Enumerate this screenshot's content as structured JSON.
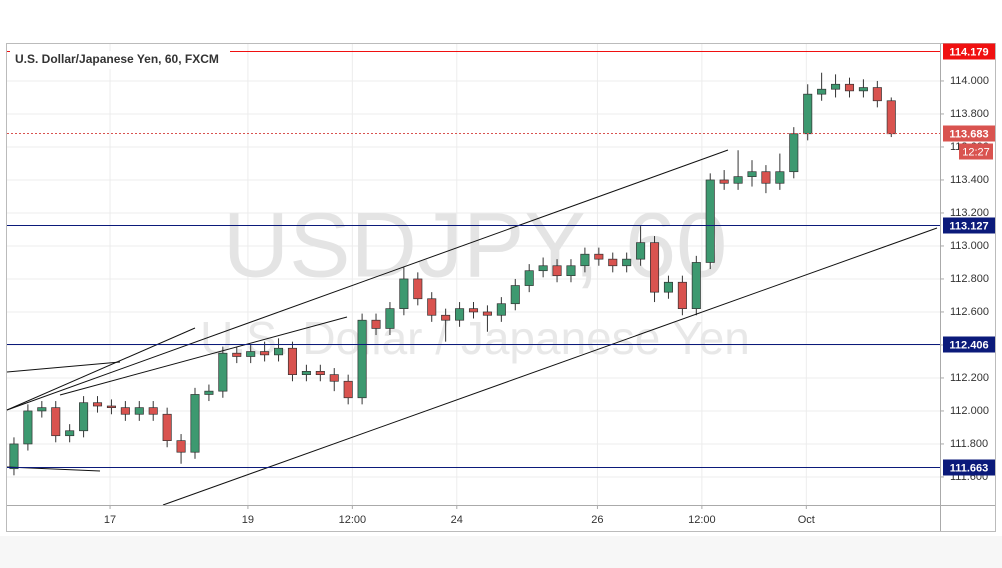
{
  "chart_data": {
    "type": "candlestick",
    "title": "U.S. Dollar/Japanese Yen, 60, FXCM",
    "watermark": "USDJPY, 60",
    "watermark_subtitle": "U.S. Dollar / Japanese Yen",
    "open": [
      111.65,
      111.8,
      112.0,
      112.02,
      111.85,
      111.88,
      112.05,
      112.03,
      112.02,
      111.98,
      112.02,
      111.98,
      111.82,
      111.75,
      112.1,
      112.12,
      112.35,
      112.33,
      112.36,
      112.34,
      112.38,
      112.22,
      112.24,
      112.22,
      112.18,
      112.08,
      112.55,
      112.5,
      112.62,
      112.8,
      112.68,
      112.58,
      112.55,
      112.62,
      112.6,
      112.58,
      112.65,
      112.76,
      112.85,
      112.88,
      112.82,
      112.88,
      112.95,
      112.92,
      112.88,
      112.92,
      113.02,
      112.72,
      112.78,
      112.62,
      112.9,
      113.4,
      113.38,
      113.42,
      113.45,
      113.38,
      113.45,
      113.68,
      113.92,
      113.95,
      113.98,
      113.94,
      113.96,
      113.88
    ],
    "high": [
      111.84,
      112.04,
      112.06,
      112.06,
      111.92,
      112.09,
      112.09,
      112.07,
      112.06,
      112.06,
      112.06,
      112.02,
      111.86,
      112.14,
      112.16,
      112.39,
      112.39,
      112.4,
      112.42,
      112.44,
      112.42,
      112.28,
      112.28,
      112.26,
      112.22,
      112.59,
      112.59,
      112.66,
      112.87,
      112.84,
      112.72,
      112.62,
      112.66,
      112.66,
      112.64,
      112.69,
      112.8,
      112.89,
      112.93,
      112.92,
      112.92,
      112.99,
      112.99,
      112.96,
      112.96,
      113.12,
      113.06,
      112.82,
      112.82,
      112.94,
      113.44,
      113.46,
      113.58,
      113.52,
      113.49,
      113.56,
      113.72,
      113.98,
      114.05,
      114.04,
      114.02,
      114.01,
      114.0,
      113.9
    ],
    "low": [
      111.61,
      111.76,
      111.96,
      111.81,
      111.81,
      111.84,
      111.99,
      111.98,
      111.94,
      111.94,
      111.94,
      111.78,
      111.68,
      111.71,
      112.06,
      112.08,
      112.29,
      112.29,
      112.3,
      112.3,
      112.18,
      112.18,
      112.18,
      112.12,
      112.04,
      112.04,
      112.46,
      112.46,
      112.58,
      112.64,
      112.54,
      112.42,
      112.51,
      112.56,
      112.48,
      112.54,
      112.61,
      112.72,
      112.81,
      112.78,
      112.78,
      112.84,
      112.88,
      112.84,
      112.84,
      112.88,
      112.66,
      112.68,
      112.58,
      112.58,
      112.86,
      113.34,
      113.34,
      113.36,
      113.32,
      113.34,
      113.41,
      113.64,
      113.88,
      113.9,
      113.9,
      113.9,
      113.84,
      113.66
    ],
    "close": [
      111.8,
      112.0,
      112.02,
      111.85,
      111.88,
      112.05,
      112.03,
      112.02,
      111.98,
      112.02,
      111.98,
      111.82,
      111.75,
      112.1,
      112.12,
      112.35,
      112.33,
      112.36,
      112.34,
      112.38,
      112.22,
      112.24,
      112.22,
      112.18,
      112.08,
      112.55,
      112.5,
      112.62,
      112.8,
      112.68,
      112.58,
      112.55,
      112.62,
      112.6,
      112.58,
      112.65,
      112.76,
      112.85,
      112.88,
      112.82,
      112.88,
      112.95,
      112.92,
      112.88,
      112.92,
      113.02,
      112.72,
      112.78,
      112.62,
      112.9,
      113.4,
      113.38,
      113.42,
      113.45,
      113.38,
      113.45,
      113.68,
      113.92,
      113.95,
      113.98,
      113.94,
      113.96,
      113.88,
      113.68
    ],
    "up_color": "#3d9970",
    "down_color": "#d9534f",
    "xlim": [
      -0.5,
      66.5
    ],
    "xticks": [
      {
        "value": 6.9,
        "label": "17"
      },
      {
        "value": 16.8,
        "label": "19"
      },
      {
        "value": 24.3,
        "label": "12:00"
      },
      {
        "value": 31.8,
        "label": "24"
      },
      {
        "value": 41.9,
        "label": "26"
      },
      {
        "value": 49.4,
        "label": "12:00"
      },
      {
        "value": 56.9,
        "label": "Oct"
      }
    ],
    "ylim": [
      111.43,
      114.224
    ],
    "yticks": [
      {
        "value": 111.6,
        "label": "111.600"
      },
      {
        "value": 111.8,
        "label": "111.800"
      },
      {
        "value": 112,
        "label": "112.000"
      },
      {
        "value": 112.2,
        "label": "112.200"
      },
      {
        "value": 112.4,
        "label": "112.400"
      },
      {
        "value": 112.6,
        "label": "112.600"
      },
      {
        "value": 112.8,
        "label": "112.800"
      },
      {
        "value": 113,
        "label": "113.000"
      },
      {
        "value": 113.2,
        "label": "113.200"
      },
      {
        "value": 113.4,
        "label": "113.400"
      },
      {
        "value": 113.6,
        "label": "113.600"
      },
      {
        "value": 113.8,
        "label": "113.800"
      },
      {
        "value": 114,
        "label": "114.000"
      }
    ],
    "grid": true,
    "levels": [
      {
        "value": 114.179,
        "color": "#f01010",
        "style": "solid"
      },
      {
        "value": 113.683,
        "color": "#d9534f",
        "style": "dotted"
      },
      {
        "value": 113.127,
        "color": "#0b1a7a",
        "style": "solid"
      },
      {
        "value": 112.406,
        "color": "#0b1a7a",
        "style": "solid"
      },
      {
        "value": 111.663,
        "color": "#0b1a7a",
        "style": "solid"
      }
    ],
    "countdown": "12:27"
  }
}
